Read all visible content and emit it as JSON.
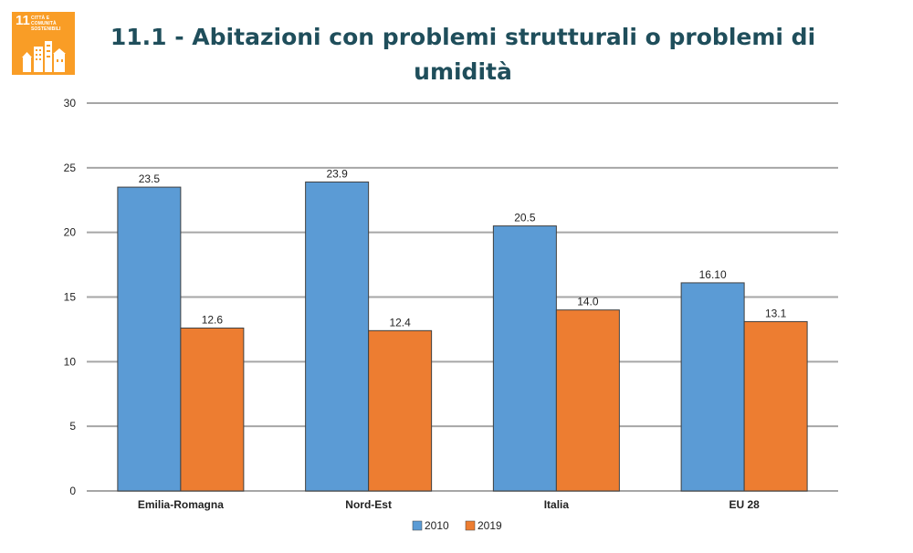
{
  "badge": {
    "number": "11",
    "label": "Città e comunità sostenibili",
    "color": "#F99D26"
  },
  "title": "11.1 - Abitazioni con problemi strutturali o problemi di umidità",
  "chart_data": {
    "type": "bar",
    "categories": [
      "Emilia-Romagna",
      "Nord-Est",
      "Italia",
      "EU 28"
    ],
    "series": [
      {
        "name": "2010",
        "values": [
          23.5,
          23.9,
          20.5,
          16.1
        ],
        "labels": [
          "23.5",
          "23.9",
          "20.5",
          "16.10"
        ],
        "color": "#5B9BD5"
      },
      {
        "name": "2019",
        "values": [
          12.6,
          12.4,
          14.0,
          13.1
        ],
        "labels": [
          "12.6",
          "12.4",
          "14.0",
          "13.1"
        ],
        "color": "#ED7D31"
      }
    ],
    "ylim": [
      0,
      30
    ],
    "yticks": [
      0,
      5,
      10,
      15,
      20,
      25,
      30
    ],
    "grid": true,
    "legend": "bottom"
  }
}
